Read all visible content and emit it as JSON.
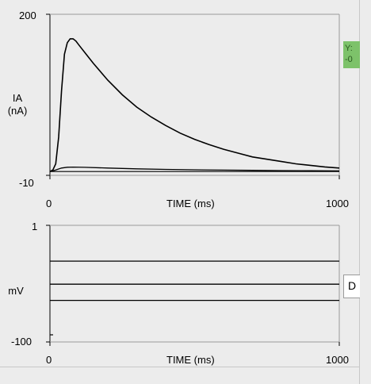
{
  "chart_data": [
    {
      "type": "line",
      "ylabel": "IA\n(nA)",
      "xlabel": "TIME (ms)",
      "xlim": [
        0,
        1000
      ],
      "ylim": [
        -10,
        200
      ],
      "x_ticks": [
        "0",
        "1000"
      ],
      "y_ticks": [
        "200",
        "-10"
      ],
      "grid": false,
      "series": [
        {
          "x": [
            0,
            10,
            20,
            30,
            40,
            50,
            60,
            70,
            80,
            90,
            100,
            125,
            150,
            200,
            250,
            300,
            350,
            400,
            450,
            500,
            550,
            600,
            650,
            700,
            750,
            800,
            850,
            900,
            950,
            1000
          ],
          "values": [
            -5,
            -3,
            5,
            40,
            100,
            148,
            163,
            168,
            168,
            165,
            160,
            148,
            136,
            114,
            95,
            79,
            66,
            55,
            45,
            37,
            30,
            24,
            19,
            14,
            11,
            8,
            5,
            3,
            1,
            -0.5
          ]
        },
        {
          "x": [
            0,
            20,
            40,
            60,
            80,
            120,
            200,
            300,
            400,
            500,
            600,
            700,
            800,
            900,
            1000
          ],
          "values": [
            -5,
            -3,
            -0.5,
            0.5,
            0.8,
            0.4,
            -0.5,
            -1.5,
            -2.2,
            -2.8,
            -3.2,
            -3.5,
            -3.8,
            -4.0,
            -4.2
          ]
        },
        {
          "x": [
            0,
            100,
            200,
            400,
            600,
            800,
            1000
          ],
          "values": [
            -5,
            -5,
            -5,
            -5,
            -5,
            -5,
            -5
          ]
        }
      ]
    },
    {
      "type": "line",
      "ylabel": "mV",
      "xlabel": "TIME (ms)",
      "xlim": [
        0,
        1000
      ],
      "ylim": [
        -100,
        1
      ],
      "x_ticks": [
        "0",
        "1000"
      ],
      "y_ticks": [
        "1",
        "-100"
      ],
      "grid": false,
      "series": [
        {
          "x": [
            0,
            1000
          ],
          "values": [
            -30,
            -30
          ]
        },
        {
          "x": [
            0,
            1000
          ],
          "values": [
            -50,
            -50
          ]
        },
        {
          "x": [
            0,
            1000
          ],
          "values": [
            -64,
            -64
          ]
        }
      ]
    }
  ],
  "side_tabs": {
    "top_text": "Y:\n-0",
    "bottom_text": "D"
  }
}
